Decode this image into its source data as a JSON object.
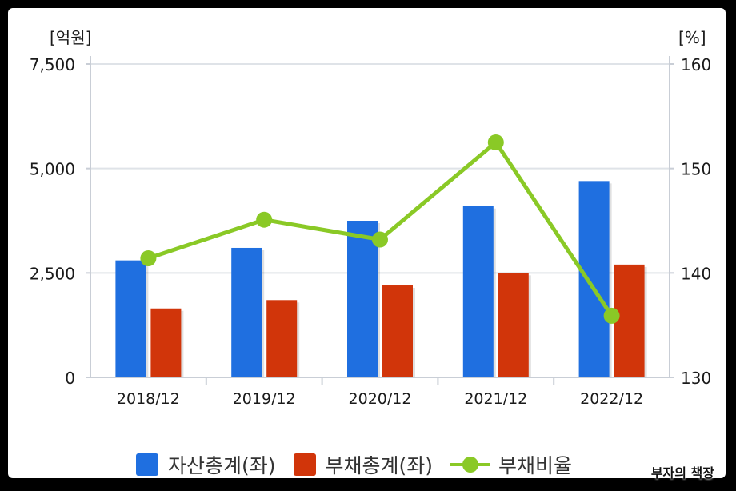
{
  "chart_data": {
    "type": "bar",
    "categories": [
      "2018/12",
      "2019/12",
      "2020/12",
      "2021/12",
      "2022/12"
    ],
    "series": [
      {
        "name": "자산총계(좌)",
        "kind": "bar",
        "axis": "left",
        "color": "#1f6fe0",
        "values": [
          2800,
          3100,
          3750,
          4100,
          4700
        ]
      },
      {
        "name": "부채총계(좌)",
        "kind": "bar",
        "axis": "left",
        "color": "#d1350a",
        "values": [
          1650,
          1850,
          2200,
          2500,
          2700
        ]
      },
      {
        "name": "부채비율",
        "kind": "line",
        "axis": "right",
        "color": "#8ac926",
        "values": [
          141.4,
          145.1,
          143.2,
          152.5,
          135.9
        ]
      }
    ],
    "left_axis": {
      "unit": "[억원]",
      "ylim": [
        0,
        7500
      ],
      "ticks": [
        0,
        2500,
        5000,
        7500
      ],
      "tick_labels": [
        "0",
        "2,500",
        "5,000",
        "7,500"
      ]
    },
    "right_axis": {
      "unit": "[%]",
      "ylim": [
        130,
        160
      ],
      "ticks": [
        130,
        140,
        150,
        160
      ],
      "tick_labels": [
        "130",
        "140",
        "150",
        "160"
      ]
    },
    "grid": true,
    "legend_position": "bottom"
  },
  "watermark": "부자의 책장"
}
